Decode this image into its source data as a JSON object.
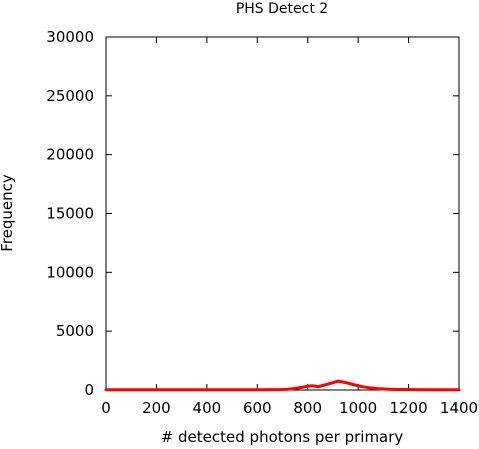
{
  "chart_data": {
    "type": "line",
    "title": "PHS Detect 2",
    "xlabel": "# detected photons per primary",
    "ylabel": "Frequency",
    "xlim": [
      0,
      1400
    ],
    "ylim": [
      0,
      30000
    ],
    "xticks": [
      0,
      200,
      400,
      600,
      800,
      1000,
      1200,
      1400
    ],
    "yticks": [
      0,
      5000,
      10000,
      15000,
      20000,
      25000,
      30000
    ],
    "grid": false,
    "legend": "none",
    "series": [
      {
        "color": "#ff0000",
        "x": [
          0,
          100,
          200,
          300,
          400,
          500,
          600,
          700,
          720,
          740,
          760,
          780,
          800,
          820,
          840,
          860,
          880,
          900,
          920,
          940,
          960,
          980,
          1000,
          1020,
          1040,
          1060,
          1080,
          1100,
          1120,
          1140,
          1160,
          1200,
          1300,
          1400
        ],
        "values": [
          20,
          20,
          20,
          20,
          20,
          20,
          20,
          40,
          70,
          110,
          170,
          240,
          320,
          360,
          280,
          380,
          500,
          620,
          760,
          680,
          580,
          470,
          360,
          270,
          200,
          150,
          110,
          90,
          70,
          50,
          40,
          30,
          20,
          20
        ]
      }
    ]
  }
}
